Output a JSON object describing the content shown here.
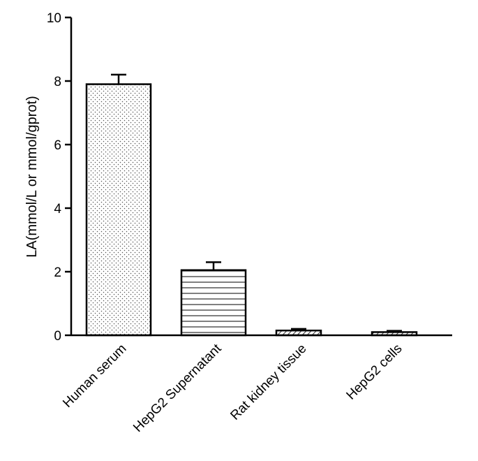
{
  "chart_data": {
    "type": "bar",
    "categories": [
      "Human serum",
      "HepG2 Supernatant",
      "Rat kidney tissue",
      "HepG2 cells"
    ],
    "values": [
      7.9,
      2.05,
      0.15,
      0.1
    ],
    "errors": [
      0.3,
      0.25,
      0.05,
      0.04
    ],
    "patterns": [
      "dots",
      "horizontal-lines",
      "diagonal-hatch",
      "diagonal-hatch"
    ],
    "title": "",
    "xlabel": "",
    "ylabel": "LA(mmol/L or mmol/gprot)",
    "ylim": [
      0,
      10
    ],
    "yticks": [
      "0",
      "2",
      "4",
      "6",
      "8",
      "10"
    ],
    "grid": false,
    "legend": "none"
  }
}
